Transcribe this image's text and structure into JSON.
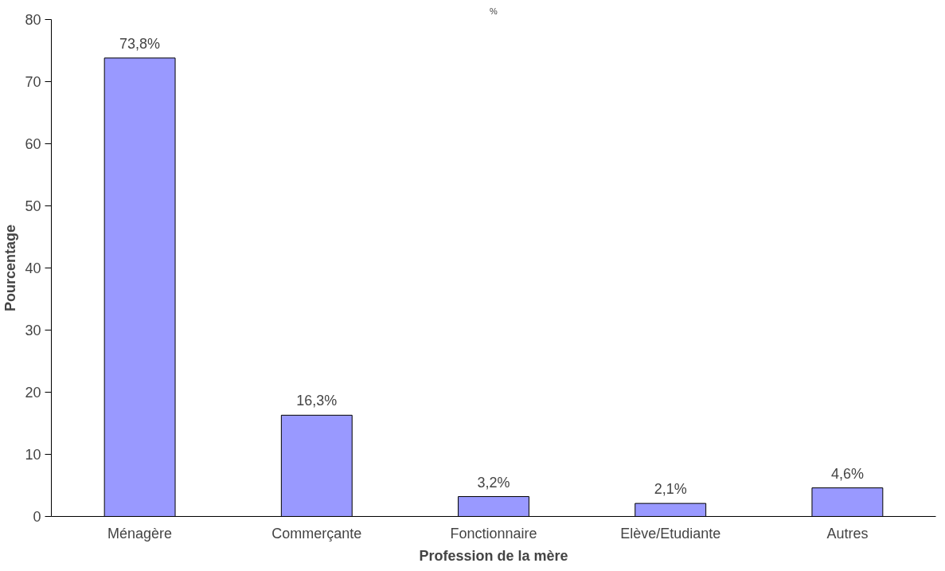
{
  "chart_data": {
    "type": "bar",
    "title": "%",
    "xlabel": "Profession de la mère",
    "ylabel": "Pourcentage",
    "categories": [
      "Ménagère",
      "Commerçante",
      "Fonctionnaire",
      "Elève/Etudiante",
      "Autres"
    ],
    "values": [
      73.8,
      16.3,
      3.2,
      2.1,
      4.6
    ],
    "value_labels": [
      "73,8%",
      "16,3%",
      "3,2%",
      "2,1%",
      "4,6%"
    ],
    "color": "#9999ff",
    "ylim": [
      0,
      80
    ],
    "yticks": [
      0,
      10,
      20,
      30,
      40,
      50,
      60,
      70,
      80
    ],
    "grid": false
  }
}
